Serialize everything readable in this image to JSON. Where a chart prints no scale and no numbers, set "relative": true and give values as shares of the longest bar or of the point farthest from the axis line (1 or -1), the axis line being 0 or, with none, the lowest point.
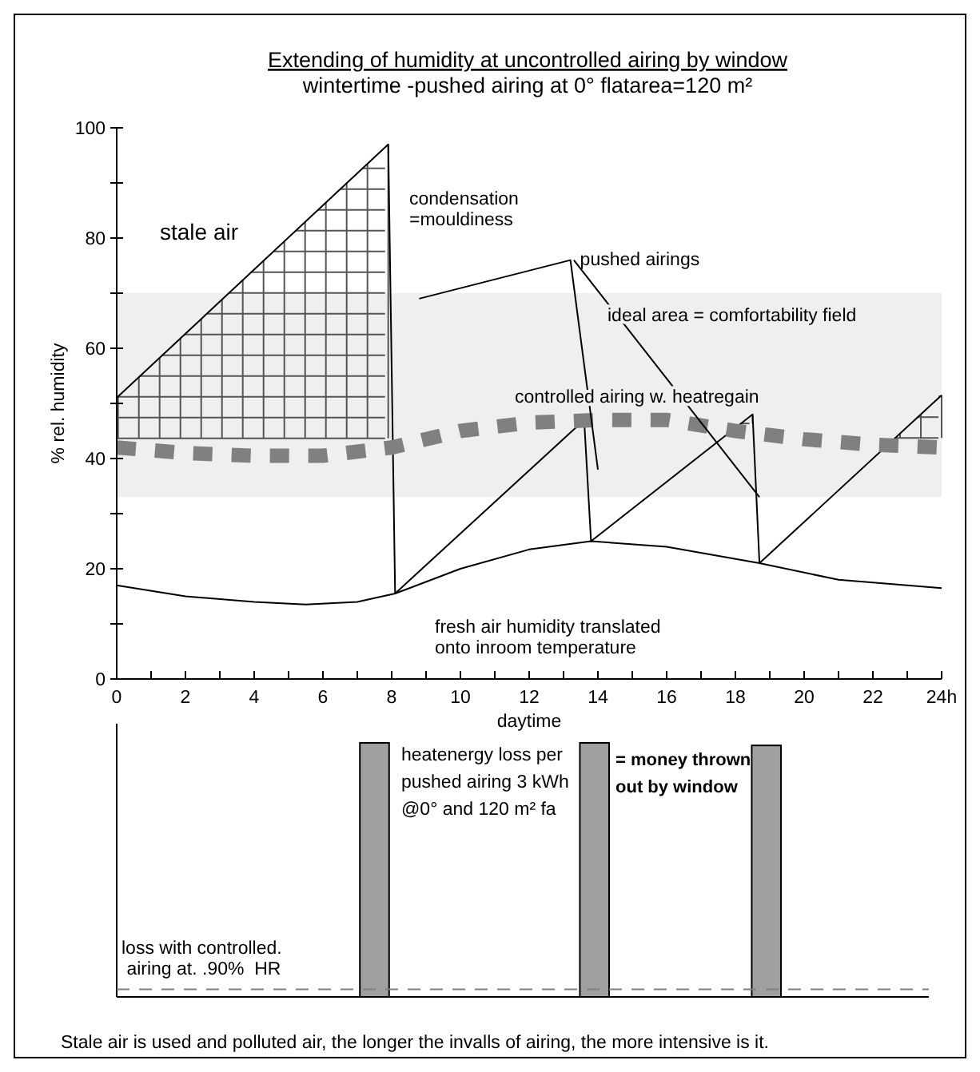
{
  "chart_data": [
    {
      "type": "line",
      "title": "Extending of humidity at uncontrolled airing by window",
      "subtitle": "wintertime -pushed airing at 0° flatarea=120 m²",
      "xlabel": "daytime",
      "ylabel": "% rel. humidity",
      "xlim": [
        0,
        24
      ],
      "ylim": [
        0,
        100
      ],
      "xticks": [
        0,
        {
          "value": 1,
          "label": null
        },
        2,
        {
          "value": 3,
          "label": null
        },
        4,
        {
          "value": 5,
          "label": null
        },
        6,
        {
          "value": 7,
          "label": null
        },
        8,
        {
          "value": 9,
          "label": null
        },
        10,
        {
          "value": 11,
          "label": null
        },
        12,
        {
          "value": 13,
          "label": null
        },
        14,
        {
          "value": 15,
          "label": null
        },
        16,
        {
          "value": 17,
          "label": null
        },
        18,
        {
          "value": 19,
          "label": null
        },
        20,
        {
          "value": 21,
          "label": null
        },
        22,
        {
          "value": 23,
          "label": null
        },
        {
          "value": 24,
          "label": "24h"
        }
      ],
      "yticks": [
        0,
        {
          "value": 10,
          "label": null
        },
        20,
        {
          "value": 30,
          "label": null
        },
        40,
        {
          "value": 50,
          "label": null
        },
        60,
        {
          "value": 70,
          "label": null
        },
        80,
        {
          "value": 90,
          "label": null
        },
        100
      ],
      "grid": false,
      "marker": "none",
      "bands": [
        {
          "axis": "y",
          "from": 33,
          "to": 70,
          "color": "#efefef"
        }
      ],
      "series": [
        {
          "color": "#000000",
          "x": [
            0,
            7.9,
            8.1,
            13.6,
            13.8,
            18.5,
            18.7,
            24
          ],
          "values": [
            51,
            97,
            15.5,
            47,
            25,
            48,
            21,
            51.5
          ],
          "line_style": "solid"
        },
        {
          "color": "#000000",
          "x": [
            0,
            2,
            4,
            5.5,
            7,
            8.1,
            10,
            12,
            13.8,
            16,
            18.7,
            21,
            24
          ],
          "values": [
            17,
            15,
            14,
            13.5,
            14,
            15.5,
            20,
            23.5,
            25,
            24,
            21,
            18,
            16.5
          ],
          "line_style": "solid"
        },
        {
          "color": "#808080",
          "x": [
            0,
            2,
            4,
            6,
            8,
            10,
            12,
            14,
            16,
            18,
            20,
            22,
            24
          ],
          "values": [
            42,
            41,
            40.5,
            40.5,
            42,
            45,
            46.5,
            47,
            47,
            45,
            43.5,
            42.5,
            42
          ],
          "line_style": "dashed"
        },
        {
          "color": "#000000",
          "x": [
            8.8,
            13.2,
            14
          ],
          "values": [
            69,
            76,
            38
          ],
          "line_style": "solid"
        },
        {
          "color": "#000000",
          "x": [
            13.3,
            18.7
          ],
          "values": [
            76,
            33
          ],
          "line_style": "solid"
        }
      ],
      "annotations": [
        "stale air",
        "condensation\n=mouldiness",
        {
          "text": "pushed airings",
          "x": 13.2,
          "y": 76
        },
        "ideal area = comfortability field",
        "controlled airing w. heatregain",
        "fresh air humidity translated\nonto inroom temperature"
      ]
    },
    {
      "type": "bar",
      "relative": true,
      "x": [
        7.5,
        13.9,
        18.9
      ],
      "values": [
        1,
        1,
        0.99
      ],
      "color": "#a0a0a0",
      "xlim": [
        0,
        24
      ],
      "ref_lines": [
        {
          "axis": "y",
          "value": 0.03,
          "label": "loss with controlled.\n airing at. .90%  HR",
          "color": "#808080",
          "line_style": "dashed"
        }
      ],
      "annotations": [
        "heatenergy loss per\npushed airing 3 kWh\n@0° and 120 m² fa",
        "= money thrown\nout by window",
        "Stale air is used and polluted air, the longer the invalls of airing, the more intensive is it."
      ]
    }
  ]
}
